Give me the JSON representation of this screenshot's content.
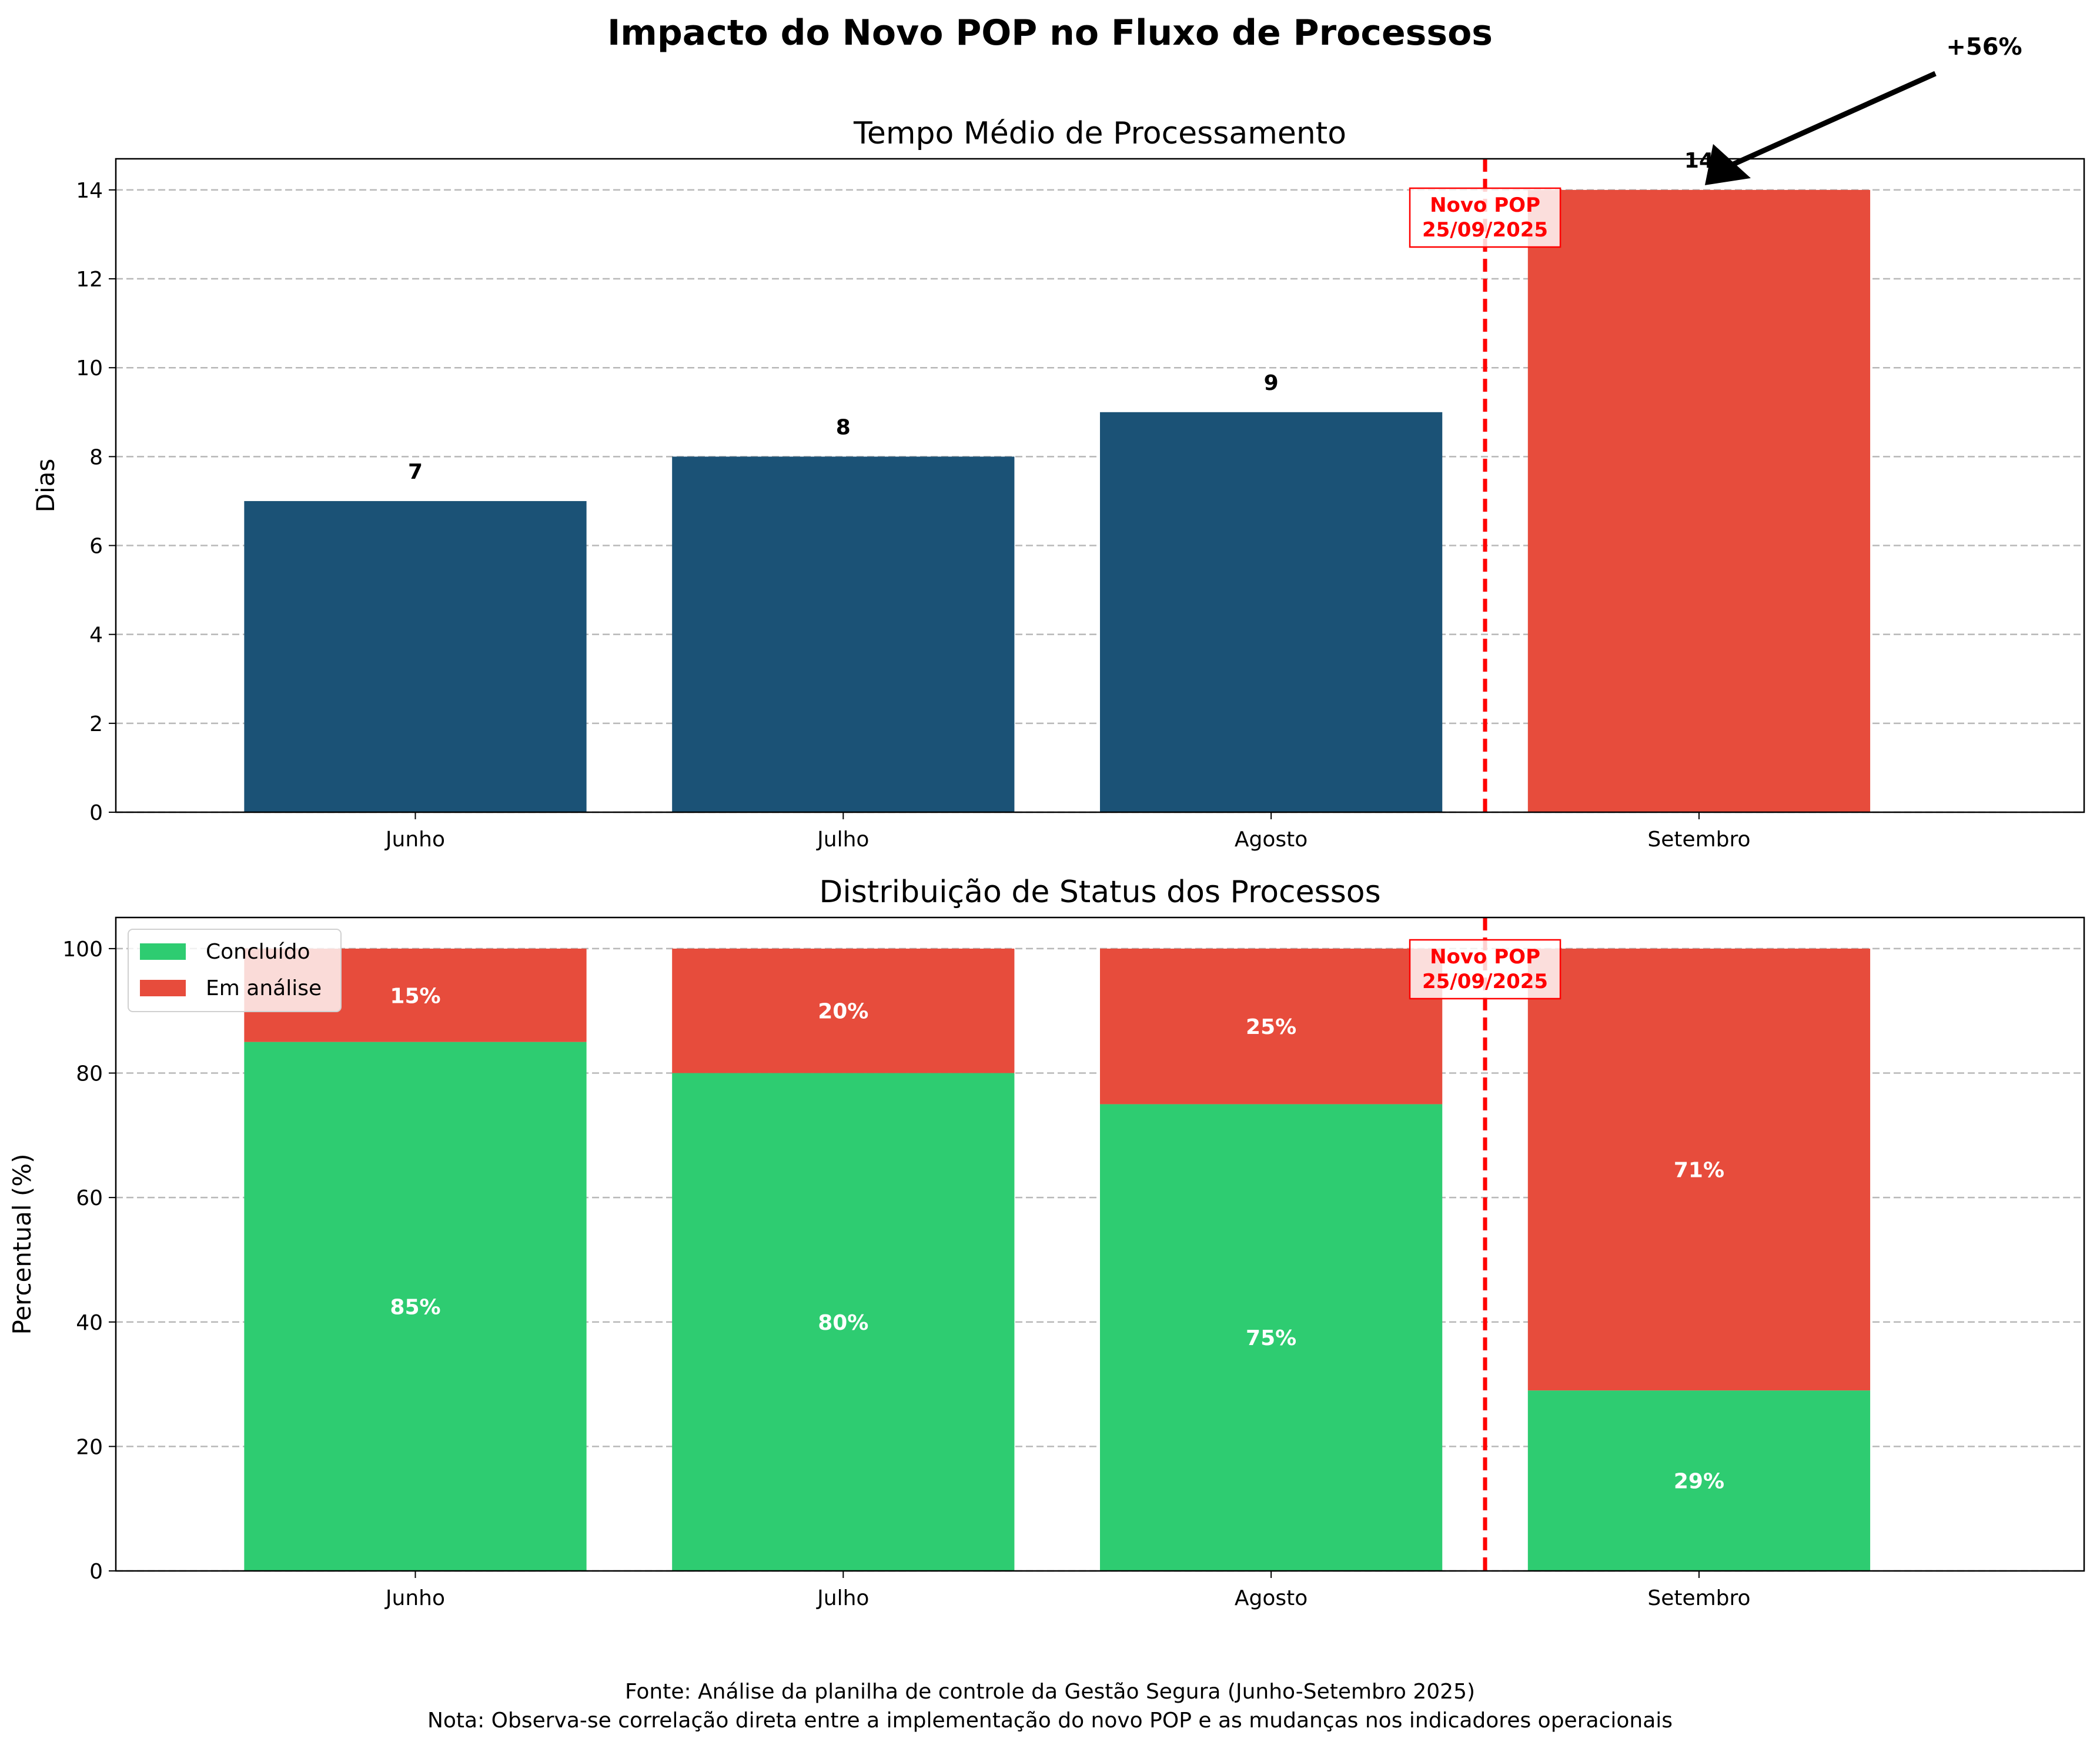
{
  "figure": {
    "title": "Impacto do Novo POP no Fluxo de Processos",
    "footnotes": [
      "Fonte: Análise da planilha de controle da Gestão Segura (Junho-Setembro 2025)",
      "Nota: Observa-se correlação direta entre a implementação do novo POP e as mudanças nos indicadores operacionais"
    ]
  },
  "chart_data": [
    {
      "type": "bar",
      "title": "Tempo Médio de Processamento",
      "categories": [
        "Junho",
        "Julho",
        "Agosto",
        "Setembro"
      ],
      "values": [
        7,
        8,
        9,
        14
      ],
      "bar_colors": [
        "#1b5276",
        "#1b5276",
        "#1b5276",
        "#e74c3c"
      ],
      "ylabel": "Dias",
      "xlabel": "",
      "ylim": [
        0,
        14.7
      ],
      "yticks": [
        0,
        2,
        4,
        6,
        8,
        10,
        12,
        14
      ],
      "grid": true,
      "annotations": [
        {
          "text": "Novo POP\n25/09/2025",
          "color": "#ff0000"
        },
        {
          "text": "+56%",
          "arrow_to_category": "Setembro"
        }
      ]
    },
    {
      "type": "bar",
      "stacked": true,
      "title": "Distribuição de Status dos Processos",
      "categories": [
        "Junho",
        "Julho",
        "Agosto",
        "Setembro"
      ],
      "series": [
        {
          "name": "Concluído",
          "values": [
            85,
            80,
            75,
            29
          ],
          "color": "#2ecc71"
        },
        {
          "name": "Em análise",
          "values": [
            15,
            20,
            25,
            71
          ],
          "color": "#e74c3c"
        }
      ],
      "ylabel": "Percentual (%)",
      "xlabel": "",
      "ylim": [
        0,
        105
      ],
      "yticks": [
        0,
        20,
        40,
        60,
        80,
        100
      ],
      "grid": true,
      "legend": "top-left",
      "annotations": [
        {
          "text": "Novo POP\n25/09/2025",
          "color": "#ff0000"
        }
      ]
    }
  ]
}
